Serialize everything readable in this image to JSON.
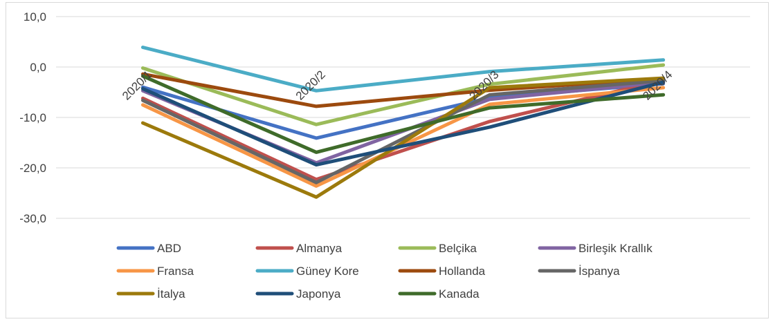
{
  "chart_data": {
    "type": "line",
    "categories": [
      "2020/1",
      "2020/2",
      "2020/3",
      "2020/4"
    ],
    "ylim": [
      -30,
      10
    ],
    "yticks": [
      "10,0",
      "0,0",
      "-10,0",
      "-20,0",
      "-30,0"
    ],
    "ytick_values": [
      10,
      0,
      -10,
      -20,
      -30
    ],
    "grid": true,
    "legend_position": "bottom",
    "series": [
      {
        "name": "ABD",
        "color": "#4472C4",
        "values": [
          -4.0,
          -14.1,
          -6.1,
          -3.3
        ]
      },
      {
        "name": "Almanya",
        "color": "#C0504D",
        "values": [
          -6.2,
          -22.3,
          -10.8,
          -2.6
        ]
      },
      {
        "name": "Belçika",
        "color": "#9BBB59",
        "values": [
          -0.2,
          -11.4,
          -3.4,
          0.4
        ]
      },
      {
        "name": "Birleşik Krallık",
        "color": "#8064A2",
        "values": [
          -4.7,
          -19.0,
          -6.4,
          -3.0
        ]
      },
      {
        "name": "Fransa",
        "color": "#F79646",
        "values": [
          -7.5,
          -23.6,
          -7.4,
          -4.1
        ]
      },
      {
        "name": "Güney Kore",
        "color": "#4BACC6",
        "values": [
          3.9,
          -4.7,
          -0.9,
          1.4
        ]
      },
      {
        "name": "Hollanda",
        "color": "#9C4A0E",
        "values": [
          -1.4,
          -7.8,
          -4.6,
          -2.3
        ]
      },
      {
        "name": "İspanya",
        "color": "#666666",
        "values": [
          -6.6,
          -22.9,
          -5.5,
          -2.7
        ]
      },
      {
        "name": "İtalya",
        "color": "#9C7A0C",
        "values": [
          -11.1,
          -25.8,
          -4.1,
          -2.2
        ]
      },
      {
        "name": "Japonya",
        "color": "#1F4E79",
        "values": [
          -4.3,
          -19.4,
          -11.9,
          -3.0
        ]
      },
      {
        "name": "Kanada",
        "color": "#3F6B2A",
        "values": [
          -1.8,
          -16.9,
          -8.1,
          -5.5
        ]
      }
    ]
  }
}
